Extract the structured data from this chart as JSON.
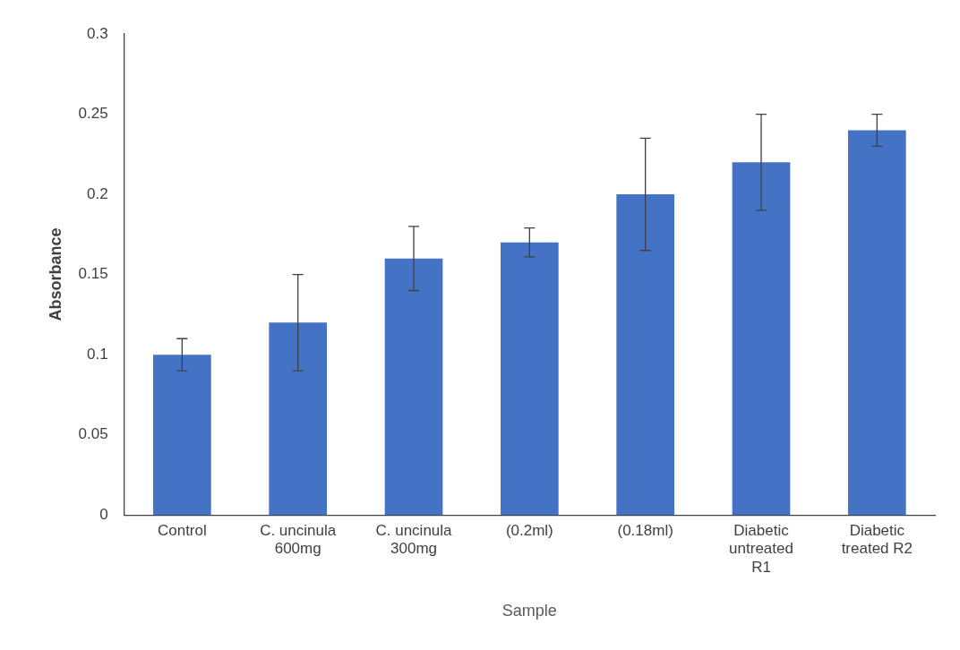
{
  "chart_data": {
    "type": "bar",
    "xlabel": "Sample",
    "ylabel": "Absorbance",
    "categories": [
      "Control",
      "C. uncinula 600mg",
      "C. uncinula 300mg",
      "(0.2ml)",
      "(0.18ml)",
      "Diabetic untreated R1",
      "Diabetic treated R2"
    ],
    "values": [
      0.1,
      0.12,
      0.16,
      0.17,
      0.2,
      0.22,
      0.24
    ],
    "errors": [
      0.01,
      0.03,
      0.02,
      0.009,
      0.035,
      0.03,
      0.01
    ],
    "color": "#4472c4",
    "ylim": [
      0,
      0.3
    ],
    "yticks": [
      0,
      0.05,
      0.1,
      0.15,
      0.2,
      0.25,
      0.3
    ],
    "grid": false,
    "legend": false
  }
}
